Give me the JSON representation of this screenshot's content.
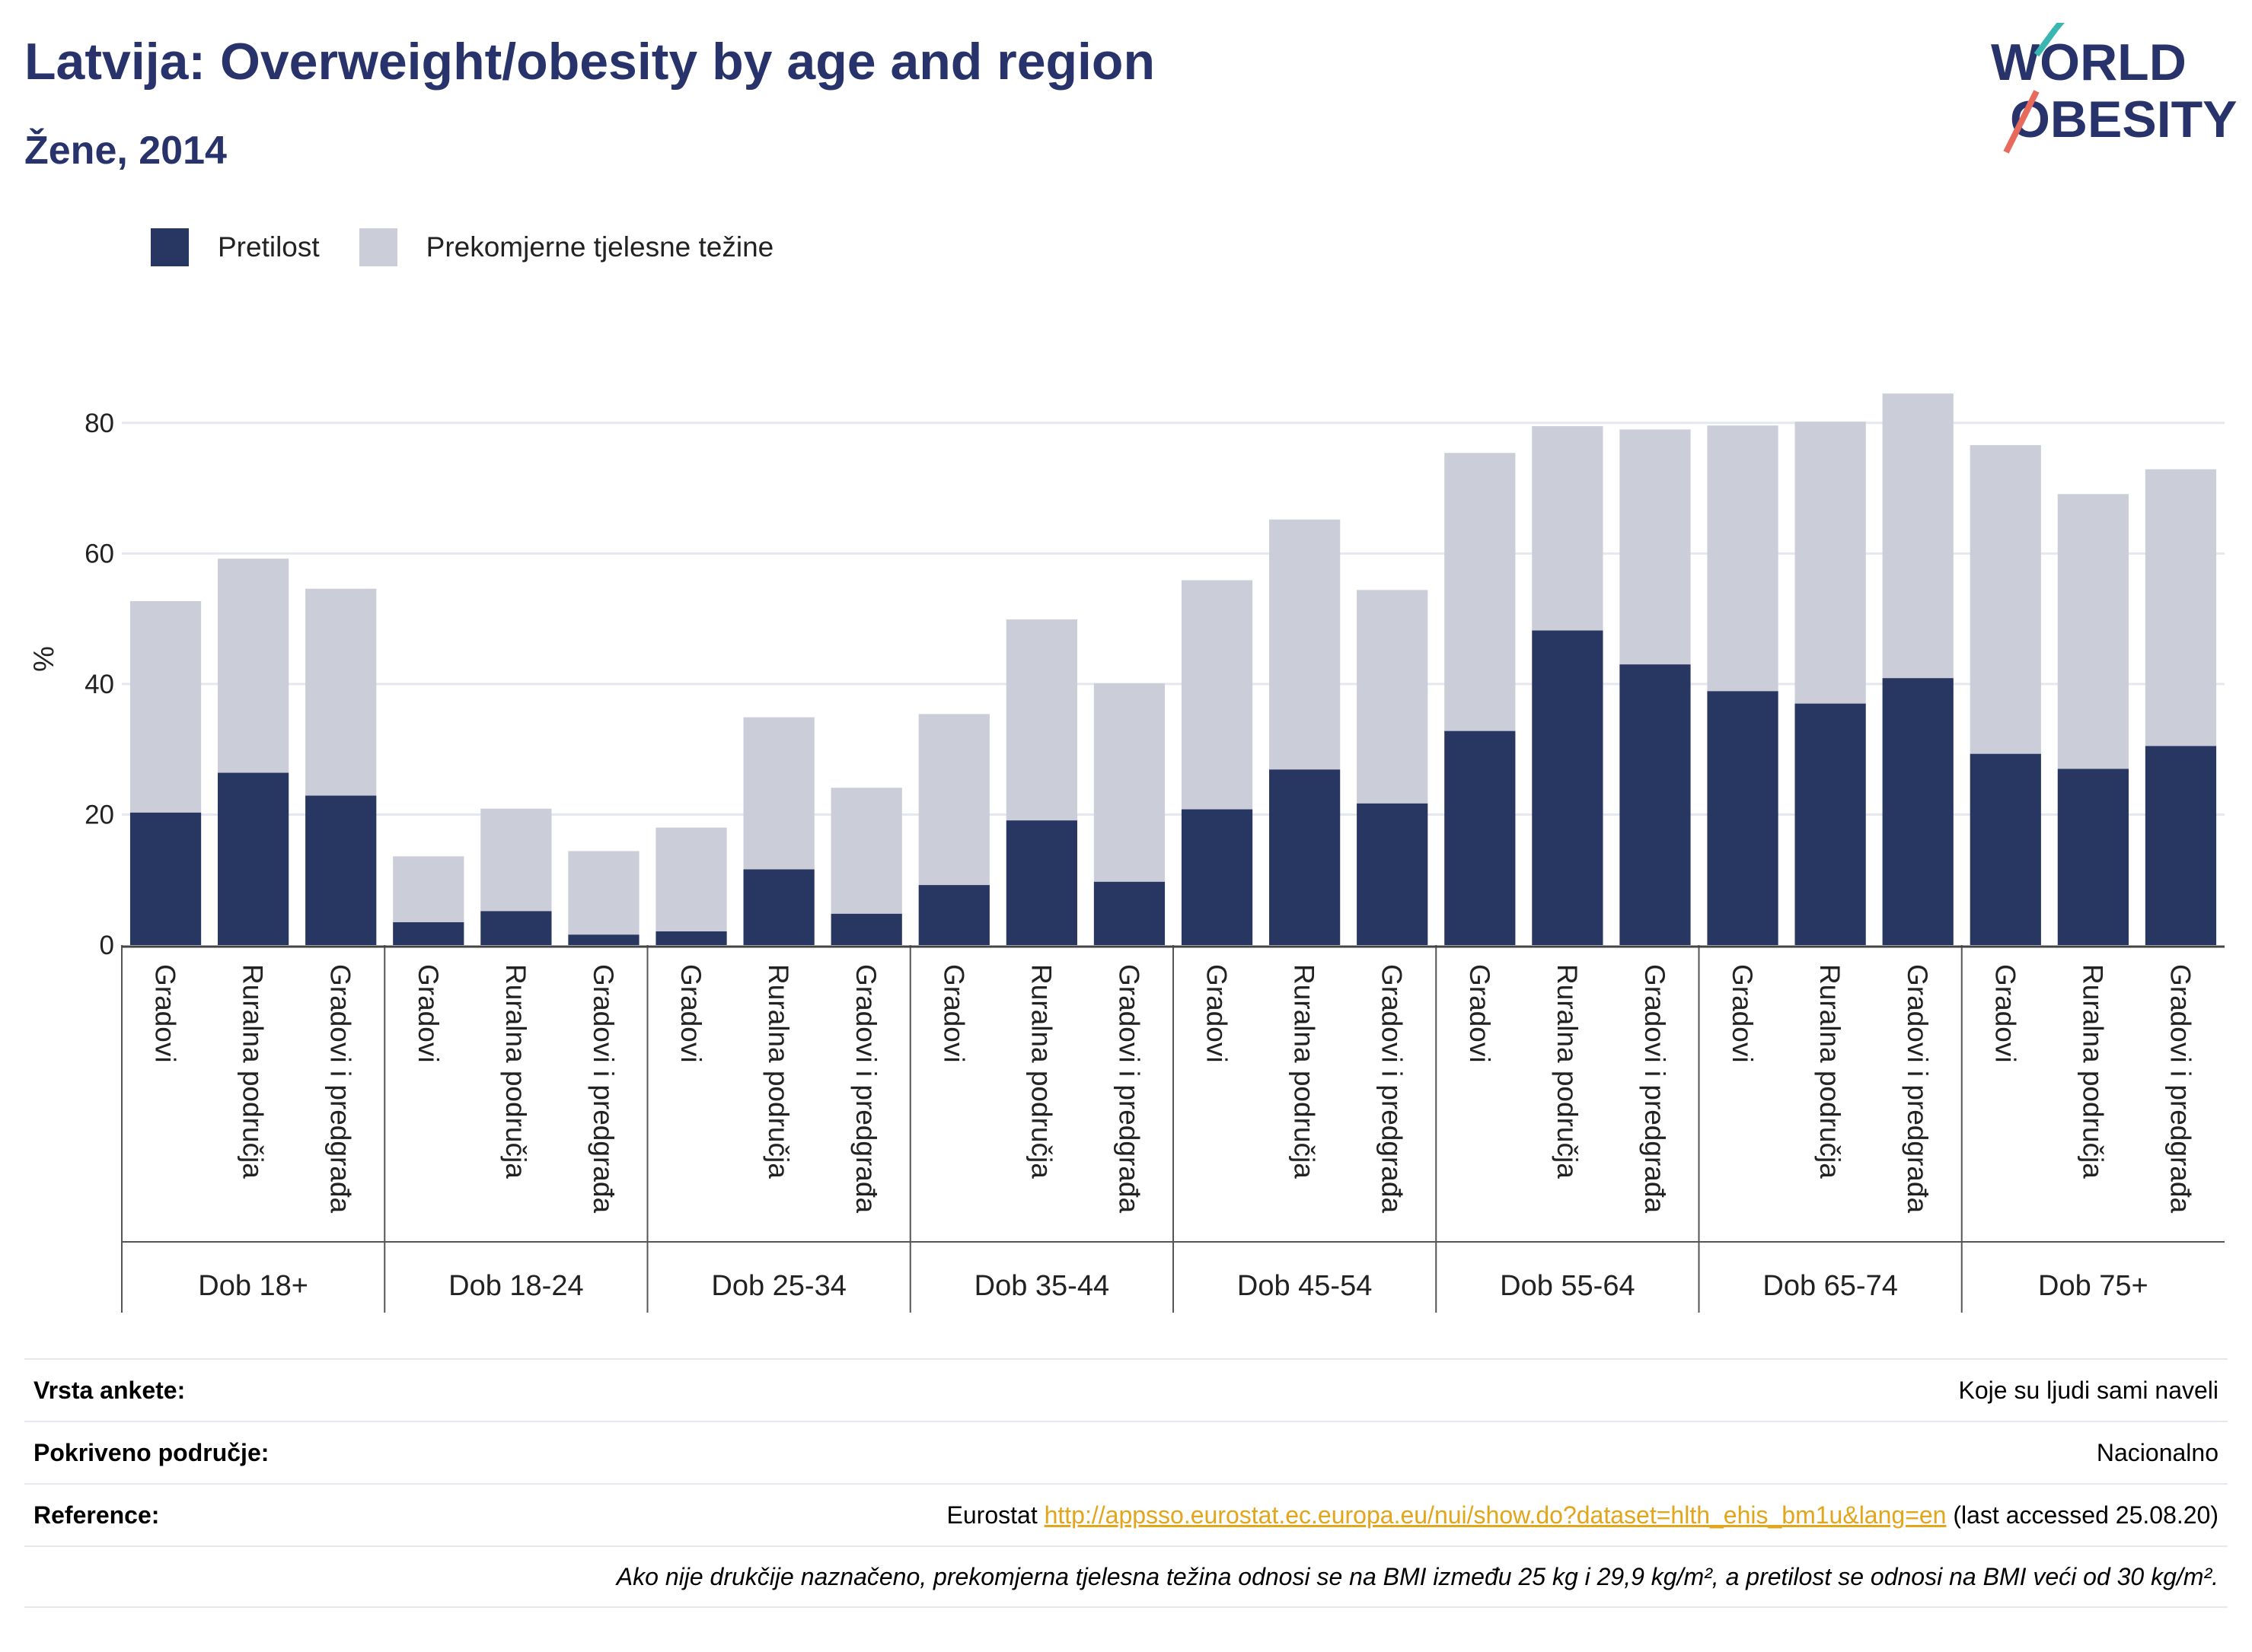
{
  "title": "Latvija: Overweight/obesity by age and region",
  "subtitle": "Žene, 2014",
  "logo": {
    "line1": "WORLD",
    "line2": "OBESITY"
  },
  "colors": {
    "obesity": "#283662",
    "overweight": "#cbcdd9",
    "title": "#27336a",
    "link": "#e3a51a"
  },
  "chart_data": {
    "type": "bar",
    "stacked": true,
    "ylabel": "%",
    "ylim": [
      0,
      90
    ],
    "yticks": [
      0,
      20,
      40,
      60,
      80
    ],
    "grid": true,
    "legend_position": "top-left",
    "series": [
      {
        "name": "Pretilost",
        "color": "#283662",
        "values": [
          20.3,
          26.4,
          22.9,
          3.5,
          5.2,
          1.6,
          2.1,
          11.6,
          4.8,
          9.2,
          19.1,
          9.7,
          20.8,
          26.9,
          21.7,
          32.8,
          48.2,
          43.0,
          38.9,
          37.0,
          40.9,
          29.3,
          27.0,
          30.5
        ]
      },
      {
        "name": "Prekomjerne tjelesne težine",
        "color": "#cbcdd9",
        "values": [
          32.4,
          32.8,
          31.7,
          10.1,
          15.7,
          12.8,
          15.9,
          23.3,
          19.3,
          26.2,
          30.8,
          30.4,
          35.1,
          38.3,
          32.7,
          42.6,
          31.3,
          36.0,
          40.7,
          43.2,
          43.6,
          47.3,
          42.1,
          42.4
        ]
      }
    ],
    "groups": [
      {
        "label": "Dob 18+",
        "categories": [
          "Gradovi",
          "Ruralna područja",
          "Gradovi i predgrađa"
        ]
      },
      {
        "label": "Dob 18-24",
        "categories": [
          "Gradovi",
          "Ruralna područja",
          "Gradovi i predgrađa"
        ]
      },
      {
        "label": "Dob 25-34",
        "categories": [
          "Gradovi",
          "Ruralna područja",
          "Gradovi i predgrađa"
        ]
      },
      {
        "label": "Dob 35-44",
        "categories": [
          "Gradovi",
          "Ruralna područja",
          "Gradovi i predgrađa"
        ]
      },
      {
        "label": "Dob 45-54",
        "categories": [
          "Gradovi",
          "Ruralna područja",
          "Gradovi i predgrađa"
        ]
      },
      {
        "label": "Dob 55-64",
        "categories": [
          "Gradovi",
          "Ruralna područja",
          "Gradovi i predgrađa"
        ]
      },
      {
        "label": "Dob 65-74",
        "categories": [
          "Gradovi",
          "Ruralna područja",
          "Gradovi i predgrađa"
        ]
      },
      {
        "label": "Dob 75+",
        "categories": [
          "Gradovi",
          "Ruralna područja",
          "Gradovi i predgrađa"
        ]
      }
    ]
  },
  "meta": {
    "survey_label": "Vrsta ankete:",
    "survey_value": "Koje su ljudi sami naveli",
    "coverage_label": "Pokriveno područje:",
    "coverage_value": "Nacionalno",
    "reference_label": "Reference:",
    "reference_source": "Eurostat",
    "reference_url": "http://appsso.eurostat.ec.europa.eu/nui/show.do?dataset=hlth_ehis_bm1u&lang=en",
    "reference_accessed": "(last accessed 25.08.20)",
    "note": "Ako nije drukčije naznačeno, prekomjerna tjelesna težina odnosi se na BMI između 25 kg i 29,9 kg/m², a pretilost se odnosi na BMI veći od 30 kg/m²."
  }
}
